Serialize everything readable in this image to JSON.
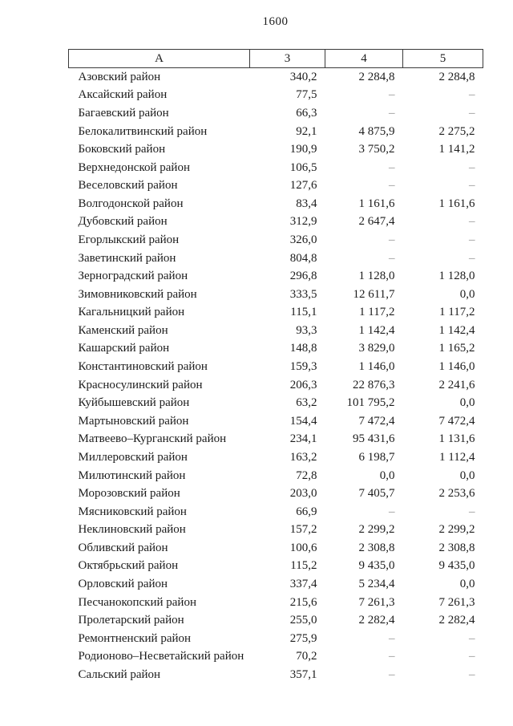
{
  "page": {
    "number": "1600"
  },
  "table": {
    "headers": [
      "А",
      "3",
      "4",
      "5"
    ],
    "rows": [
      {
        "name": "Азовский район",
        "c3": "340,2",
        "c4": "2 284,8",
        "c5": "2 284,8"
      },
      {
        "name": "Аксайский район",
        "c3": "77,5",
        "c4": "–",
        "c5": "–"
      },
      {
        "name": "Багаевский район",
        "c3": "66,3",
        "c4": "–",
        "c5": "–"
      },
      {
        "name": "Белокалитвинский район",
        "c3": "92,1",
        "c4": "4 875,9",
        "c5": "2 275,2"
      },
      {
        "name": "Боковский район",
        "c3": "190,9",
        "c4": "3 750,2",
        "c5": "1 141,2"
      },
      {
        "name": "Верхнедонской район",
        "c3": "106,5",
        "c4": "–",
        "c5": "–"
      },
      {
        "name": "Веселовский район",
        "c3": "127,6",
        "c4": "–",
        "c5": "–"
      },
      {
        "name": "Волгодонской район",
        "c3": "83,4",
        "c4": "1 161,6",
        "c5": "1 161,6"
      },
      {
        "name": "Дубовский район",
        "c3": "312,9",
        "c4": "2 647,4",
        "c5": "–"
      },
      {
        "name": "Егорлыкский район",
        "c3": "326,0",
        "c4": "–",
        "c5": "–"
      },
      {
        "name": "Заветинский район",
        "c3": "804,8",
        "c4": "–",
        "c5": "–"
      },
      {
        "name": "Зерноградский район",
        "c3": "296,8",
        "c4": "1 128,0",
        "c5": "1 128,0"
      },
      {
        "name": "Зимовниковский район",
        "c3": "333,5",
        "c4": "12 611,7",
        "c5": "0,0"
      },
      {
        "name": "Кагальницкий район",
        "c3": "115,1",
        "c4": "1 117,2",
        "c5": "1 117,2"
      },
      {
        "name": "Каменский район",
        "c3": "93,3",
        "c4": "1 142,4",
        "c5": "1 142,4"
      },
      {
        "name": "Кашарский район",
        "c3": "148,8",
        "c4": "3 829,0",
        "c5": "1 165,2"
      },
      {
        "name": "Константиновский район",
        "c3": "159,3",
        "c4": "1 146,0",
        "c5": "1 146,0"
      },
      {
        "name": "Красносулинский район",
        "c3": "206,3",
        "c4": "22 876,3",
        "c5": "2 241,6"
      },
      {
        "name": "Куйбышевский район",
        "c3": "63,2",
        "c4": "101 795,2",
        "c5": "0,0"
      },
      {
        "name": "Мартыновский район",
        "c3": "154,4",
        "c4": "7 472,4",
        "c5": "7 472,4"
      },
      {
        "name": "Матвеево–Курганский район",
        "c3": "234,1",
        "c4": "95 431,6",
        "c5": "1 131,6"
      },
      {
        "name": "Миллеровский район",
        "c3": "163,2",
        "c4": "6 198,7",
        "c5": "1 112,4"
      },
      {
        "name": "Милютинский район",
        "c3": "72,8",
        "c4": "0,0",
        "c5": "0,0"
      },
      {
        "name": "Морозовский район",
        "c3": "203,0",
        "c4": "7 405,7",
        "c5": "2 253,6"
      },
      {
        "name": "Мясниковский район",
        "c3": "66,9",
        "c4": "–",
        "c5": "–"
      },
      {
        "name": "Неклиновский район",
        "c3": "157,2",
        "c4": "2 299,2",
        "c5": "2 299,2"
      },
      {
        "name": "Обливский район",
        "c3": "100,6",
        "c4": "2 308,8",
        "c5": "2 308,8"
      },
      {
        "name": "Октябрьский район",
        "c3": "115,2",
        "c4": "9 435,0",
        "c5": "9 435,0"
      },
      {
        "name": "Орловский район",
        "c3": "337,4",
        "c4": "5 234,4",
        "c5": "0,0"
      },
      {
        "name": "Песчанокопский район",
        "c3": "215,6",
        "c4": "7 261,3",
        "c5": "7 261,3"
      },
      {
        "name": "Пролетарский район",
        "c3": "255,0",
        "c4": "2 282,4",
        "c5": "2 282,4"
      },
      {
        "name": "Ремонтненский район",
        "c3": "275,9",
        "c4": "–",
        "c5": "–"
      },
      {
        "name": "Родионово–Несветайский район",
        "c3": "70,2",
        "c4": "–",
        "c5": "–"
      },
      {
        "name": "Сальский район",
        "c3": "357,1",
        "c4": "–",
        "c5": "–"
      }
    ]
  }
}
